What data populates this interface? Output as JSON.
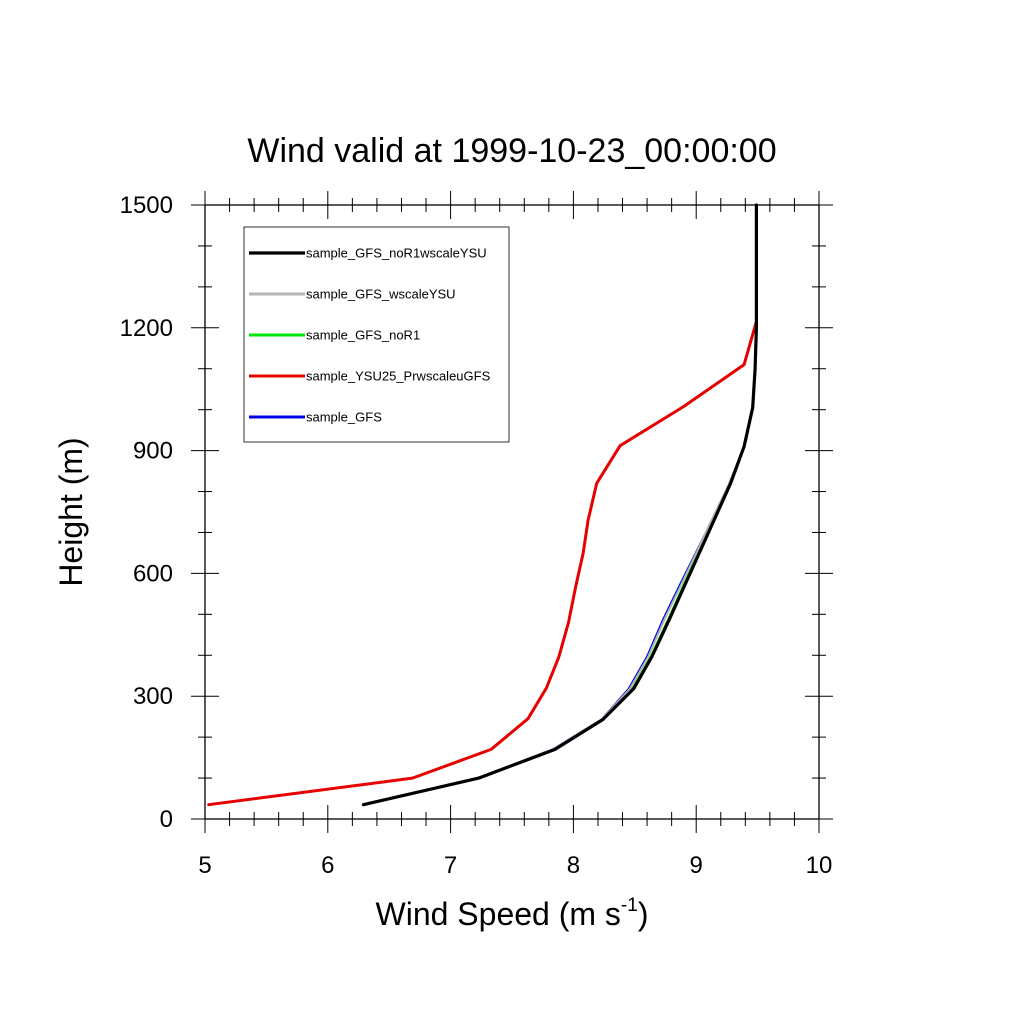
{
  "chart_data": {
    "type": "line",
    "title": "Wind valid at 1999-10-23_00:00:00",
    "xlabel": "Wind Speed (m s",
    "xlabel_sup": "-1",
    "xlabel_tail": ")",
    "ylabel": "Height (m)",
    "xlim": [
      5,
      10
    ],
    "ylim": [
      0,
      1500
    ],
    "x_ticks": [
      5,
      6,
      7,
      8,
      9,
      10
    ],
    "x_tick_labels": [
      "5",
      "6",
      "7",
      "8",
      "9",
      "10"
    ],
    "y_ticks": [
      0,
      300,
      600,
      900,
      1200,
      1500
    ],
    "y_tick_labels": [
      "0",
      "300",
      "600",
      "900",
      "1200",
      "1500"
    ],
    "grid": false,
    "legend_placement": "top-left",
    "series": [
      {
        "name": "sample_GFS_noR1wscaleYSU",
        "color": "#000000",
        "points": [
          [
            6.29,
            35
          ],
          [
            7.23,
            100
          ],
          [
            7.85,
            170
          ],
          [
            8.24,
            243
          ],
          [
            8.49,
            318
          ],
          [
            8.64,
            397
          ],
          [
            8.78,
            487
          ],
          [
            8.92,
            580
          ],
          [
            9.1,
            700
          ],
          [
            9.28,
            820
          ],
          [
            9.39,
            910
          ],
          [
            9.46,
            1005
          ],
          [
            9.48,
            1100
          ],
          [
            9.49,
            1200
          ],
          [
            9.49,
            1300
          ],
          [
            9.49,
            1500
          ]
        ]
      },
      {
        "name": "sample_GFS_wscaleYSU",
        "color": "#b4b4b4",
        "points": [
          [
            6.29,
            35
          ],
          [
            7.22,
            100
          ],
          [
            7.83,
            170
          ],
          [
            8.23,
            243
          ],
          [
            8.46,
            318
          ],
          [
            8.61,
            397
          ],
          [
            8.74,
            487
          ],
          [
            8.89,
            580
          ],
          [
            9.08,
            700
          ],
          [
            9.27,
            820
          ],
          [
            9.39,
            910
          ],
          [
            9.46,
            1005
          ],
          [
            9.48,
            1100
          ],
          [
            9.49,
            1200
          ],
          [
            9.49,
            1300
          ],
          [
            9.49,
            1500
          ]
        ]
      },
      {
        "name": "sample_GFS_noR1",
        "color": "#00e600",
        "points": [
          [
            6.29,
            35
          ],
          [
            7.23,
            100
          ],
          [
            7.85,
            170
          ],
          [
            8.24,
            243
          ],
          [
            8.48,
            318
          ],
          [
            8.63,
            397
          ],
          [
            8.77,
            487
          ],
          [
            8.91,
            580
          ],
          [
            9.09,
            700
          ],
          [
            9.28,
            820
          ],
          [
            9.39,
            910
          ],
          [
            9.46,
            1005
          ],
          [
            9.48,
            1100
          ],
          [
            9.49,
            1200
          ],
          [
            9.49,
            1300
          ],
          [
            9.49,
            1500
          ]
        ]
      },
      {
        "name": "sample_YSU25_PrwscaleuGFS",
        "color": "#e60000",
        "points": [
          [
            5.03,
            35
          ],
          [
            6.69,
            100
          ],
          [
            7.33,
            170
          ],
          [
            7.63,
            245
          ],
          [
            7.78,
            320
          ],
          [
            7.88,
            395
          ],
          [
            7.96,
            480
          ],
          [
            8.02,
            570
          ],
          [
            8.08,
            650
          ],
          [
            8.12,
            730
          ],
          [
            8.19,
            820
          ],
          [
            8.38,
            912
          ],
          [
            8.9,
            1008
          ],
          [
            9.39,
            1110
          ],
          [
            9.49,
            1215
          ]
        ]
      },
      {
        "name": "sample_GFS",
        "color": "#0000e6",
        "points": [
          [
            6.29,
            35
          ],
          [
            7.22,
            100
          ],
          [
            7.83,
            170
          ],
          [
            8.23,
            243
          ],
          [
            8.45,
            318
          ],
          [
            8.6,
            397
          ],
          [
            8.73,
            487
          ],
          [
            8.88,
            580
          ],
          [
            9.08,
            700
          ],
          [
            9.27,
            820
          ],
          [
            9.39,
            910
          ],
          [
            9.46,
            1005
          ],
          [
            9.48,
            1100
          ],
          [
            9.49,
            1200
          ],
          [
            9.49,
            1300
          ],
          [
            9.49,
            1500
          ]
        ]
      }
    ]
  }
}
